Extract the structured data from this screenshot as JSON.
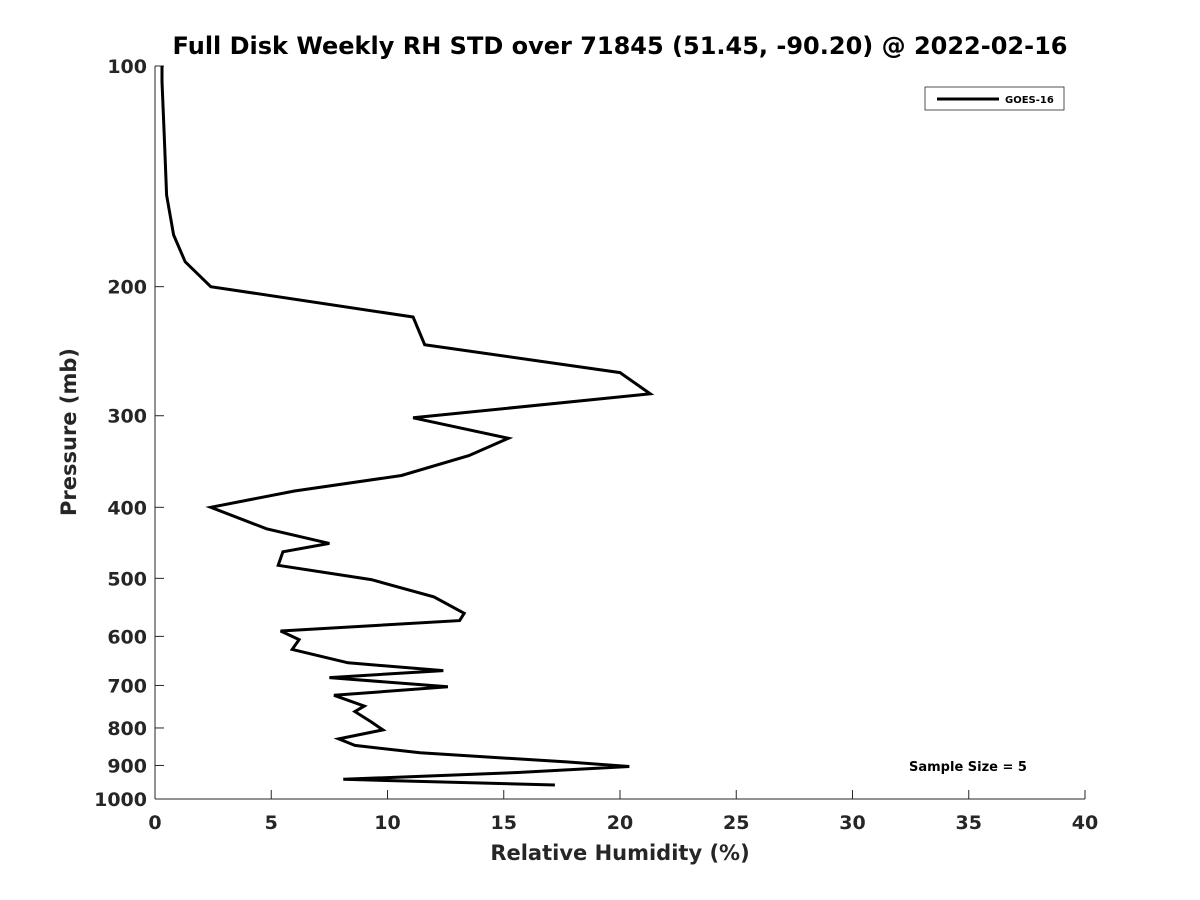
{
  "chart_data": {
    "type": "line",
    "title": "Full Disk Weekly RH STD over 71845 (51.45, -90.20) @ 2022-02-16",
    "xlabel": "Relative Humidity (%)",
    "ylabel": "Pressure (mb)",
    "xlim": [
      0,
      40
    ],
    "ylim": [
      100,
      1000
    ],
    "y_scale": "log",
    "y_reversed": true,
    "grid": false,
    "legend_position": "top-right",
    "x_ticks": [
      0,
      5,
      10,
      15,
      20,
      25,
      30,
      35,
      40
    ],
    "x_tick_labels": [
      "0",
      "5",
      "10",
      "15",
      "20",
      "25",
      "30",
      "35",
      "40"
    ],
    "y_ticks": [
      100,
      200,
      300,
      400,
      500,
      600,
      700,
      800,
      900,
      1000
    ],
    "y_tick_labels": [
      "100",
      "200",
      "300",
      "400",
      "500",
      "600",
      "700",
      "800",
      "900",
      "1000"
    ],
    "annotation": "Sample Size = 5",
    "series": [
      {
        "name": "GOES-16",
        "color": "#000000",
        "points": [
          [
            0.3,
            100
          ],
          [
            0.3,
            105
          ],
          [
            0.4,
            125
          ],
          [
            0.5,
            150
          ],
          [
            0.8,
            170
          ],
          [
            1.3,
            185
          ],
          [
            2.4,
            200
          ],
          [
            11.1,
            220
          ],
          [
            11.6,
            240
          ],
          [
            20.0,
            262
          ],
          [
            21.3,
            280
          ],
          [
            11.1,
            302
          ],
          [
            15.2,
            322
          ],
          [
            13.5,
            340
          ],
          [
            10.6,
            362
          ],
          [
            6.0,
            380
          ],
          [
            2.4,
            400
          ],
          [
            4.8,
            428
          ],
          [
            7.5,
            448
          ],
          [
            5.5,
            460
          ],
          [
            5.3,
            480
          ],
          [
            9.3,
            502
          ],
          [
            12.0,
            530
          ],
          [
            13.3,
            558
          ],
          [
            13.1,
            571
          ],
          [
            5.4,
            590
          ],
          [
            6.2,
            606
          ],
          [
            5.9,
            625
          ],
          [
            8.3,
            652
          ],
          [
            12.4,
            668
          ],
          [
            7.5,
            683
          ],
          [
            12.6,
            703
          ],
          [
            7.7,
            722
          ],
          [
            9.0,
            747
          ],
          [
            8.6,
            760
          ],
          [
            9.3,
            785
          ],
          [
            9.8,
            805
          ],
          [
            7.9,
            828
          ],
          [
            8.6,
            845
          ],
          [
            11.4,
            865
          ],
          [
            17.7,
            890
          ],
          [
            20.4,
            903
          ],
          [
            15.6,
            920
          ],
          [
            8.1,
            940
          ],
          [
            17.2,
            957
          ]
        ]
      }
    ]
  }
}
